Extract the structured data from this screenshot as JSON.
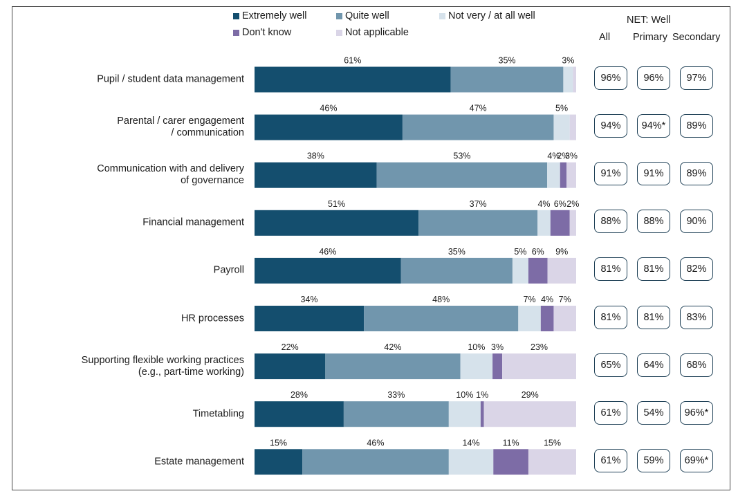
{
  "legend": {
    "items": [
      {
        "label": "Extremely well",
        "color": "#144e6e"
      },
      {
        "label": "Quite well",
        "color": "#7196ad"
      },
      {
        "label": "Not very / at all well",
        "color": "#d6e2eb"
      },
      {
        "label": "Don't know",
        "color": "#7d6ca6"
      },
      {
        "label": "Not applicable",
        "color": "#dad5e7"
      }
    ]
  },
  "net": {
    "title": "NET: Well",
    "columns": [
      "All",
      "Primary",
      "Secondary"
    ]
  },
  "chart_data": {
    "type": "bar",
    "orientation": "horizontal",
    "stacked": true,
    "xlim": [
      0,
      100
    ],
    "categories": [
      "Pupil / student data management",
      "Parental / carer engagement\n/ communication",
      "Communication with and delivery\nof governance",
      "Financial management",
      "Payroll",
      "HR processes",
      "Supporting flexible working practices\n(e.g., part-time working)",
      "Timetabling",
      "Estate management"
    ],
    "series": [
      {
        "name": "Extremely well",
        "values": [
          61,
          46,
          38,
          51,
          46,
          34,
          22,
          28,
          15
        ]
      },
      {
        "name": "Quite well",
        "values": [
          35,
          47,
          53,
          37,
          35,
          48,
          42,
          33,
          46
        ]
      },
      {
        "name": "Not very / at all well",
        "values": [
          3,
          5,
          4,
          4,
          5,
          7,
          10,
          10,
          14
        ]
      },
      {
        "name": "Don't know",
        "values": [
          0,
          0,
          2,
          6,
          6,
          4,
          3,
          1,
          11
        ]
      },
      {
        "name": "Not applicable",
        "values": [
          1,
          2,
          3,
          2,
          9,
          7,
          23,
          29,
          15
        ]
      }
    ],
    "data_labels": [
      [
        "61%",
        "35%",
        "3%",
        "",
        ""
      ],
      [
        "46%",
        "47%",
        "5%",
        "",
        ""
      ],
      [
        "38%",
        "53%",
        "4%",
        "2%",
        "3%"
      ],
      [
        "51%",
        "37%",
        "4%",
        "6%",
        "2%"
      ],
      [
        "46%",
        "35%",
        "5%",
        "6%",
        "9%"
      ],
      [
        "34%",
        "48%",
        "7%",
        "4%",
        "7%"
      ],
      [
        "22%",
        "42%",
        "10%",
        "3%",
        "23%"
      ],
      [
        "28%",
        "33%",
        "10%",
        "1%",
        "29%"
      ],
      [
        "15%",
        "46%",
        "14%",
        "11%",
        "15%"
      ]
    ],
    "net_well": [
      [
        "96%",
        "96%",
        "97%"
      ],
      [
        "94%",
        "94%*",
        "89%"
      ],
      [
        "91%",
        "91%",
        "89%"
      ],
      [
        "88%",
        "88%",
        "90%"
      ],
      [
        "81%",
        "81%",
        "82%"
      ],
      [
        "81%",
        "81%",
        "83%"
      ],
      [
        "65%",
        "64%",
        "68%"
      ],
      [
        "61%",
        "54%",
        "96%*"
      ],
      [
        "61%",
        "59%",
        "69%*"
      ]
    ]
  }
}
